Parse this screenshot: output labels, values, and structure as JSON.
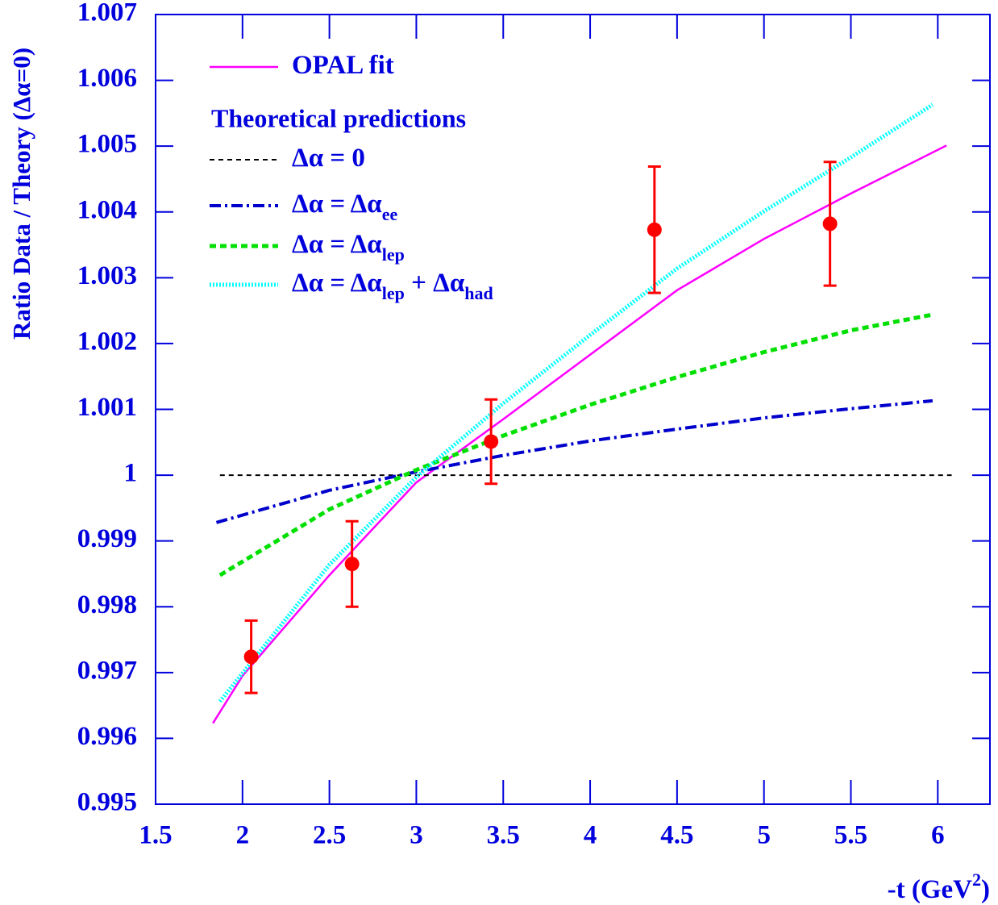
{
  "chart_data": {
    "type": "line",
    "y_label": "Ratio  Data / Theory (Δα=0)",
    "x_label": [
      "-t (GeV",
      "2",
      ")"
    ],
    "legend_header": "Theoretical predictions",
    "xlim": [
      1.5,
      6.3
    ],
    "ylim": [
      0.995,
      1.007
    ],
    "xticks": [
      1.5,
      2,
      2.5,
      3,
      3.5,
      4,
      4.5,
      5,
      5.5,
      6
    ],
    "yticks": [
      0.995,
      0.996,
      0.997,
      0.998,
      0.999,
      1,
      1.001,
      1.002,
      1.003,
      1.004,
      1.005,
      1.006,
      1.007
    ],
    "series": [
      {
        "name": [
          "OPAL fit"
        ],
        "style": "line",
        "color": "#ff00ff",
        "dash": "none",
        "width": 2.5,
        "x": [
          1.83,
          2,
          2.5,
          3,
          3.5,
          4,
          4.5,
          5,
          5.5,
          6.05
        ],
        "values": [
          0.99623,
          0.99695,
          0.99848,
          0.99989,
          1.00085,
          1.00183,
          1.00281,
          1.00359,
          1.00428,
          1.00501
        ]
      },
      {
        "name": [
          "Δα = 0"
        ],
        "style": "line",
        "color": "#000000",
        "dash": "6 5",
        "width": 2,
        "x": [
          1.87,
          6.08
        ],
        "values": [
          1,
          1
        ]
      },
      {
        "name": [
          "Δα = Δα",
          "ee"
        ],
        "style": "line",
        "color": "#0000cc",
        "dash": "14 5 3 5",
        "width": 4,
        "x": [
          1.85,
          2.5,
          3,
          3.5,
          4,
          4.5,
          5,
          5.5,
          5.97
        ],
        "values": [
          0.99928,
          0.99977,
          1.00005,
          1.0003,
          1.00052,
          1.0007,
          1.00087,
          1.00101,
          1.00113
        ]
      },
      {
        "name": [
          "Δα = Δα",
          "lep"
        ],
        "style": "line",
        "color": "#00e000",
        "dash": "8 5",
        "width": 5,
        "x": [
          1.87,
          2.5,
          3,
          3.5,
          4,
          4.5,
          5,
          5.5,
          5.97
        ],
        "values": [
          0.99848,
          0.99948,
          1.00008,
          1.0006,
          1.00107,
          1.00149,
          1.00187,
          1.0022,
          1.00244
        ]
      },
      {
        "name": [
          "Δα = Δα",
          "lep",
          " + Δα",
          "had"
        ],
        "style": "line",
        "color": "#00ffff",
        "dash": "2 2",
        "width": 5,
        "x": [
          1.87,
          2.5,
          3,
          3.5,
          4,
          4.5,
          5,
          5.5,
          5.97
        ],
        "values": [
          0.99656,
          0.99864,
          0.99997,
          1.00109,
          1.00213,
          1.00314,
          1.00401,
          1.00483,
          1.00563
        ]
      },
      {
        "style": "points",
        "color": "#ff0000",
        "x": [
          2.05,
          2.63,
          3.43,
          4.37,
          5.38
        ],
        "values": [
          0.99724,
          0.99865,
          1.00051,
          1.00373,
          1.00382
        ],
        "errors": [
          0.00055,
          0.00065,
          0.00064,
          0.00096,
          0.00094
        ]
      }
    ]
  }
}
